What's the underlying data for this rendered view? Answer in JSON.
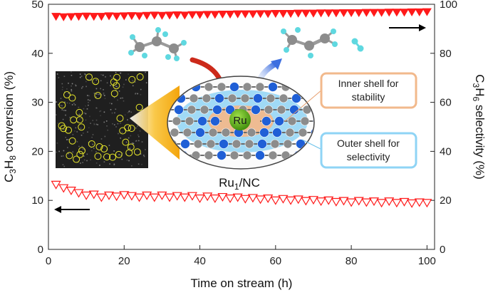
{
  "chart_data": {
    "type": "scatter",
    "xlabel": "Time on stream (h)",
    "ylabel_left_parts": [
      "C",
      "3",
      "H",
      "8",
      " conversion (%)"
    ],
    "ylabel_right_parts": [
      "C",
      "3",
      "H",
      "6",
      " selectivity (%)"
    ],
    "xlim": [
      0,
      102
    ],
    "ylim_left": [
      0,
      50
    ],
    "ylim_right": [
      0,
      100
    ],
    "x_ticks": [
      "0",
      "20",
      "40",
      "60",
      "80",
      "100"
    ],
    "y_left_ticks": [
      "0",
      "10",
      "20",
      "30",
      "40",
      "50"
    ],
    "y_right_ticks": [
      "0",
      "20",
      "40",
      "60",
      "80",
      "100"
    ],
    "series": [
      {
        "axis": "right",
        "marker": "filled-down-triangle",
        "color": "#ff1a1a",
        "x": [
          2,
          4,
          6,
          8,
          10,
          12,
          14,
          16,
          18,
          20,
          22,
          24,
          26,
          28,
          30,
          32,
          34,
          36,
          38,
          40,
          42,
          44,
          46,
          48,
          50,
          52,
          54,
          56,
          58,
          60,
          62,
          64,
          66,
          68,
          70,
          72,
          74,
          76,
          78,
          80,
          82,
          84,
          86,
          88,
          90,
          92,
          94,
          96,
          98,
          100
        ],
        "y": [
          95,
          94.8,
          94.9,
          95,
          95.1,
          95,
          95,
          95.2,
          95.1,
          95.2,
          95.3,
          95.2,
          95.4,
          95.5,
          95.4,
          95.5,
          95.6,
          95.5,
          95.7,
          95.7,
          95.8,
          95.8,
          95.9,
          95.9,
          96,
          96,
          96,
          96.1,
          96.1,
          96.2,
          96.2,
          96.2,
          96.3,
          96.3,
          96.3,
          96.4,
          96.4,
          96.4,
          96.5,
          96.5,
          96.5,
          96.6,
          96.6,
          96.6,
          96.7,
          96.7,
          96.7,
          96.8,
          96.8,
          96.9
        ]
      },
      {
        "axis": "left",
        "marker": "open-down-triangle",
        "color": "#ff1a1a",
        "x": [
          2,
          4,
          6,
          8,
          10,
          12,
          14,
          16,
          18,
          20,
          22,
          24,
          26,
          28,
          30,
          32,
          34,
          36,
          38,
          40,
          42,
          44,
          46,
          48,
          50,
          52,
          54,
          56,
          58,
          60,
          62,
          64,
          66,
          68,
          70,
          72,
          74,
          76,
          78,
          80,
          82,
          84,
          86,
          88,
          90,
          92,
          94,
          96,
          98,
          100
        ],
        "y": [
          13.2,
          12.5,
          12.0,
          11.5,
          11.0,
          11.2,
          10.6,
          11.0,
          10.8,
          11.1,
          10.9,
          10.6,
          11.0,
          10.6,
          11.0,
          10.6,
          10.9,
          10.6,
          10.9,
          10.4,
          10.8,
          10.4,
          10.7,
          10.4,
          10.6,
          10.3,
          10.5,
          10.2,
          10.4,
          10.0,
          10.3,
          10.0,
          10.2,
          9.9,
          10.1,
          9.8,
          10.0,
          9.7,
          9.9,
          9.6,
          9.9,
          9.6,
          9.8,
          9.5,
          9.8,
          9.5,
          9.7,
          9.4,
          9.6,
          9.5
        ]
      }
    ]
  },
  "inset": {
    "label_parts": [
      "Ru",
      "1",
      "/NC"
    ],
    "center_atom": "Ru",
    "callout_inner": [
      "Inner shell for",
      "stability"
    ],
    "callout_outer": [
      "Outer shell for",
      "selectivity"
    ],
    "colors": {
      "carbon": "#8c8c8c",
      "nitrogen": "#1f5fd6",
      "ruthenium": "#5db012",
      "hydrogen": "#5fd8e0",
      "inner_shell": "#f2b98c",
      "outer_shell": "#8fd4f5",
      "stem_glow": "#f5a800",
      "arrow_in": "#cc2a1a",
      "arrow_out": "#3d6fe0"
    },
    "stem_particle_count": 40
  }
}
